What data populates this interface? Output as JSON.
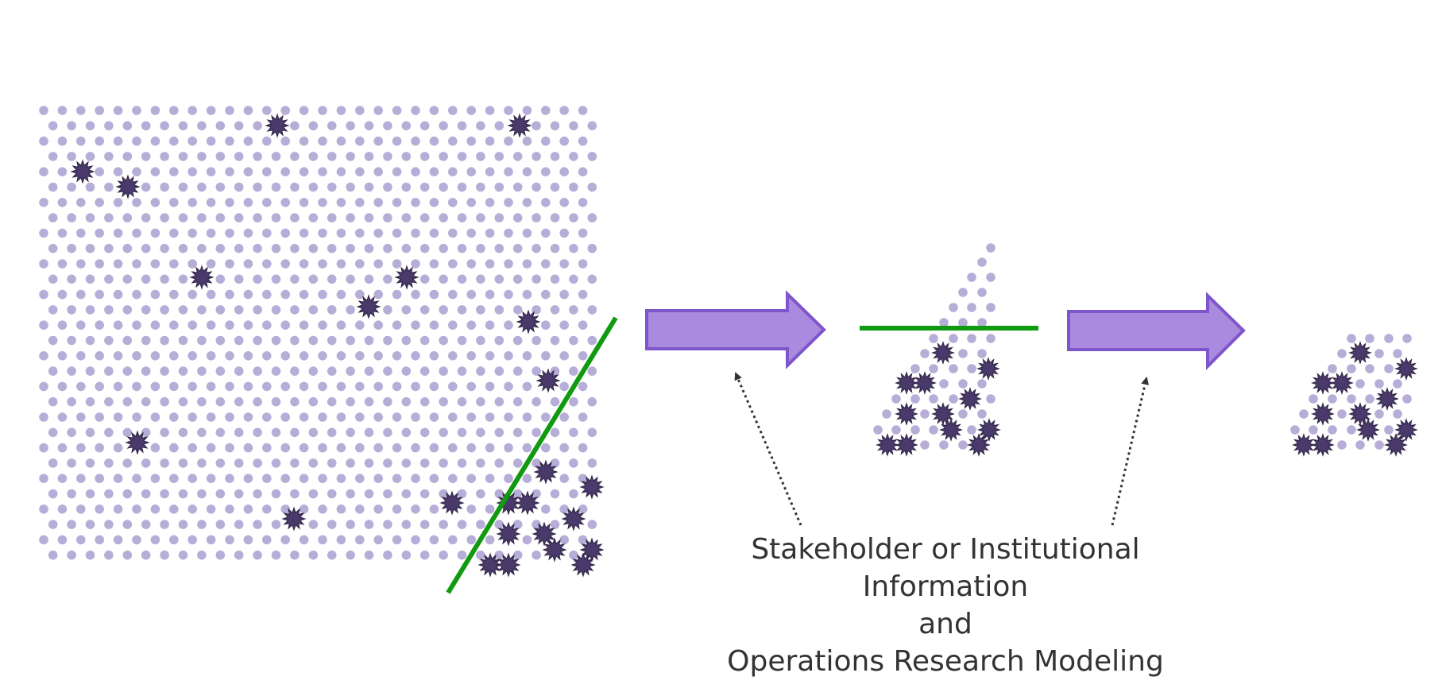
{
  "caption": {
    "line1": "Stakeholder or Institutional",
    "line2": "Information",
    "line3": "and",
    "line4": "Operations Research Modeling"
  },
  "colors": {
    "dot": "#b7aed8",
    "star": "#4a3a6b",
    "star_stroke": "#2e2444",
    "arrow_fill": "#a98ade",
    "arrow_stroke": "#7d55cc",
    "cut_line": "#109a10",
    "pointer": "#333333",
    "caption_text": "#333333"
  },
  "icons": {
    "dot": "population-dot-icon",
    "star": "highlighted-star-icon",
    "arrow": "right-arrow-icon",
    "pointer": "dotted-pointer-arrow"
  }
}
